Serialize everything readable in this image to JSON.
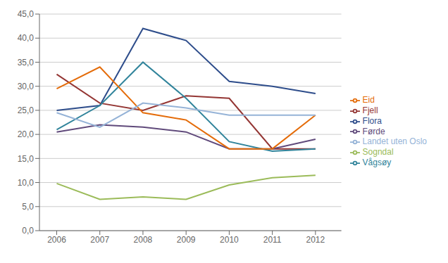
{
  "chart_data": {
    "type": "line",
    "x": [
      2006,
      2007,
      2008,
      2009,
      2010,
      2011,
      2012
    ],
    "series": [
      {
        "name": "Flora",
        "color": "#2E4D8B",
        "values": [
          25.0,
          26.0,
          42.0,
          39.5,
          31.0,
          30.0,
          28.5
        ]
      },
      {
        "name": "Fjell",
        "color": "#943634",
        "values": [
          32.5,
          26.5,
          25.0,
          28.0,
          27.5,
          17.0,
          17.0
        ]
      },
      {
        "name": "Sogndal",
        "color": "#9BBB59",
        "values": [
          9.8,
          6.5,
          7.0,
          6.5,
          9.5,
          11.0,
          11.5
        ]
      },
      {
        "name": "Førde",
        "color": "#604A7B",
        "values": [
          20.5,
          22.0,
          21.5,
          20.5,
          17.0,
          17.0,
          19.0
        ]
      },
      {
        "name": "Vågsøy",
        "color": "#31849B",
        "values": [
          21.0,
          26.0,
          35.0,
          27.5,
          18.5,
          16.5,
          17.0
        ]
      },
      {
        "name": "Eid",
        "color": "#E46C0A",
        "values": [
          29.5,
          34.0,
          24.5,
          23.0,
          17.0,
          17.0,
          24.0
        ]
      },
      {
        "name": "Landet uten Oslo",
        "color": "#95B3D7",
        "values": [
          24.5,
          21.5,
          26.5,
          25.5,
          24.0,
          24.0,
          24.0
        ]
      }
    ],
    "xlim": [
      2005.6,
      2012.6
    ],
    "xticks": [
      2006,
      2007,
      2008,
      2009,
      2010,
      2011,
      2012
    ],
    "ylim": [
      0,
      45
    ],
    "yticks": [
      {
        "value": 0.0,
        "label": "0,0"
      },
      {
        "value": 5.0,
        "label": "5,0"
      },
      {
        "value": 10.0,
        "label": "10,0"
      },
      {
        "value": 15.0,
        "label": "15,0"
      },
      {
        "value": 20.0,
        "label": "20,0"
      },
      {
        "value": 25.0,
        "label": "25,0"
      },
      {
        "value": 30.0,
        "label": "30,0"
      },
      {
        "value": 35.0,
        "label": "35,0"
      },
      {
        "value": 40.0,
        "label": "40,0"
      },
      {
        "value": 45.0,
        "label": "45,0"
      }
    ],
    "grid": "y",
    "legend": "right"
  }
}
